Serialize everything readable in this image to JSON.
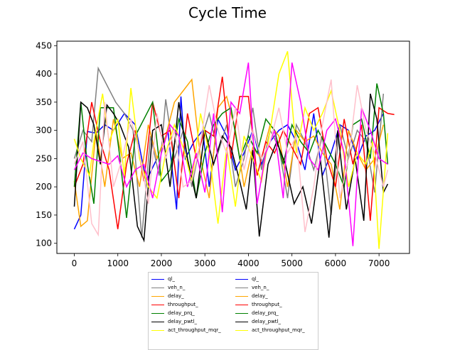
{
  "chart_data": {
    "type": "line",
    "title": "Cycle Time",
    "xlabel": "",
    "ylabel": "",
    "xlim": [
      -400,
      7700
    ],
    "ylim": [
      82,
      458
    ],
    "xticks": [
      0,
      1000,
      2000,
      3000,
      4000,
      5000,
      6000,
      7000
    ],
    "yticks": [
      100,
      150,
      200,
      250,
      300,
      350,
      400,
      450
    ],
    "grid": false,
    "legend_position": "bottom",
    "series": [
      {
        "name": "ql_",
        "color": "#0000ff",
        "x": [
          0,
          150,
          300,
          500,
          700,
          900,
          1150,
          1400,
          1650,
          1900,
          2150,
          2350,
          2450,
          2550,
          2750,
          2950,
          3100,
          3300,
          3500,
          3700,
          3900,
          4100,
          4300,
          4500,
          4700,
          4900,
          5100,
          5300,
          5500,
          5700,
          5900,
          6100,
          6300,
          6500,
          6700,
          6900,
          7100
        ],
        "values": [
          125,
          150,
          298,
          295,
          310,
          300,
          330,
          310,
          210,
          250,
          300,
          160,
          360,
          250,
          280,
          300,
          200,
          320,
          290,
          230,
          260,
          300,
          240,
          280,
          300,
          310,
          280,
          230,
          330,
          220,
          260,
          310,
          300,
          250,
          290,
          300,
          330
        ]
      },
      {
        "name": "veh_n_",
        "color": "#808080",
        "x": [
          0,
          200,
          400,
          550,
          750,
          950,
          1150,
          1350,
          1550,
          1750,
          1950,
          2100,
          2300,
          2500,
          2700,
          2900,
          3100,
          3300,
          3500,
          3700,
          3900,
          4100,
          4300,
          4500,
          4700,
          4900,
          5100,
          5300,
          5500,
          5700,
          5900,
          6100,
          6300,
          6500,
          6700,
          6900,
          7100
        ],
        "values": [
          250,
          300,
          280,
          410,
          380,
          350,
          330,
          300,
          110,
          290,
          220,
          355,
          250,
          300,
          200,
          280,
          330,
          260,
          310,
          200,
          250,
          340,
          230,
          300,
          270,
          180,
          310,
          280,
          230,
          290,
          150,
          310,
          250,
          300,
          280,
          190,
          365
        ]
      },
      {
        "name": "delay_",
        "color": "#ffa500",
        "x": [
          0,
          150,
          300,
          500,
          700,
          900,
          1100,
          1300,
          1500,
          1700,
          1900,
          2100,
          2300,
          2500,
          2700,
          2900,
          3100,
          3300,
          3500,
          3700,
          3900,
          4100,
          4300,
          4500,
          4700,
          4900,
          5100,
          5300,
          5500,
          5700,
          5900,
          6100,
          6300,
          6500,
          6700,
          6900,
          7100
        ],
        "values": [
          210,
          130,
          140,
          300,
          200,
          320,
          250,
          260,
          200,
          310,
          250,
          290,
          350,
          370,
          390,
          250,
          180,
          340,
          360,
          300,
          200,
          270,
          250,
          310,
          290,
          200,
          300,
          280,
          290,
          260,
          240,
          160,
          300,
          260,
          230,
          250,
          310
        ]
      },
      {
        "name": "throughput_",
        "color": "#ff0000",
        "x": [
          0,
          200,
          400,
          600,
          800,
          1000,
          1200,
          1400,
          1600,
          1800,
          2000,
          2200,
          2400,
          2600,
          2800,
          3000,
          3200,
          3400,
          3600,
          3800,
          4000,
          4200,
          4400,
          4600,
          4800,
          5000,
          5200,
          5400,
          5600,
          5800,
          6000,
          6200,
          6400,
          6600,
          6800,
          7000,
          7200,
          7350
        ],
        "values": [
          200,
          240,
          350,
          280,
          230,
          125,
          240,
          300,
          210,
          350,
          290,
          300,
          180,
          330,
          250,
          300,
          290,
          395,
          250,
          360,
          360,
          220,
          280,
          260,
          300,
          270,
          240,
          330,
          340,
          250,
          200,
          320,
          240,
          310,
          140,
          340,
          330,
          328
        ]
      },
      {
        "name": "delay_prq_",
        "color": "#008000",
        "x": [
          0,
          150,
          300,
          450,
          600,
          750,
          900,
          1050,
          1200,
          1400,
          1600,
          1800,
          2000,
          2200,
          2400,
          2600,
          2800,
          3000,
          3200,
          3400,
          3600,
          3800,
          4000,
          4200,
          4400,
          4600,
          4800,
          5000,
          5200,
          5400,
          5600,
          5800,
          6000,
          6200,
          6400,
          6600,
          6800,
          6950,
          7100,
          7200
        ],
        "values": [
          200,
          350,
          240,
          170,
          340,
          340,
          340,
          250,
          145,
          290,
          320,
          350,
          210,
          230,
          320,
          280,
          180,
          260,
          310,
          330,
          340,
          250,
          290,
          260,
          320,
          300,
          240,
          310,
          280,
          260,
          300,
          270,
          240,
          200,
          310,
          320,
          250,
          383,
          330,
          240
        ]
      },
      {
        "name": "delay_pwtl_",
        "color": "#000000",
        "x": [
          0,
          150,
          300,
          450,
          600,
          750,
          900,
          1050,
          1250,
          1450,
          1600,
          1800,
          2000,
          2200,
          2400,
          2600,
          2800,
          3000,
          3200,
          3400,
          3600,
          3800,
          3950,
          4100,
          4250,
          4450,
          4650,
          4850,
          5050,
          5250,
          5450,
          5650,
          5850,
          6050,
          6250,
          6450,
          6650,
          6800,
          6950,
          7100,
          7200
        ],
        "values": [
          165,
          350,
          340,
          310,
          240,
          345,
          330,
          310,
          270,
          130,
          105,
          300,
          310,
          200,
          350,
          250,
          180,
          300,
          240,
          290,
          270,
          210,
          160,
          265,
          112,
          240,
          280,
          240,
          170,
          200,
          135,
          250,
          110,
          300,
          160,
          250,
          140,
          365,
          320,
          190,
          205
        ]
      },
      {
        "name": "act_throughput_mqr_",
        "color": "#ffff00",
        "x": [
          0,
          150,
          350,
          450,
          650,
          800,
          1000,
          1150,
          1300,
          1500,
          1700,
          1900,
          2100,
          2300,
          2500,
          2700,
          2900,
          3100,
          3300,
          3500,
          3700,
          3900,
          4100,
          4300,
          4500,
          4700,
          4900,
          5100,
          5300,
          5500,
          5700,
          5900,
          6100,
          6300,
          6500,
          6700,
          6850,
          7000,
          7200
        ],
        "values": [
          285,
          250,
          220,
          280,
          365,
          280,
          320,
          220,
          375,
          250,
          200,
          180,
          260,
          310,
          270,
          210,
          330,
          260,
          135,
          270,
          165,
          290,
          250,
          210,
          300,
          400,
          440,
          260,
          340,
          300,
          330,
          370,
          300,
          200,
          260,
          240,
          280,
          90,
          295
        ]
      },
      {
        "name": "",
        "color": "#ff00ff",
        "x": [
          0,
          200,
          400,
          600,
          800,
          1000,
          1200,
          1400,
          1600,
          1800,
          2000,
          2200,
          2400,
          2600,
          2800,
          3000,
          3200,
          3400,
          3600,
          3800,
          4000,
          4200,
          4400,
          4600,
          4800,
          5000,
          5200,
          5400,
          5600,
          5800,
          6000,
          6200,
          6400,
          6600,
          6800,
          7000,
          7200
        ],
        "values": [
          230,
          260,
          250,
          245,
          240,
          255,
          200,
          230,
          240,
          180,
          260,
          310,
          290,
          200,
          260,
          190,
          330,
          155,
          350,
          330,
          420,
          170,
          260,
          300,
          180,
          420,
          350,
          250,
          230,
          300,
          320,
          260,
          95,
          340,
          300,
          250,
          240
        ]
      },
      {
        "name": "",
        "color": "#ffc0cb",
        "x": [
          0,
          200,
          400,
          550,
          700,
          900,
          1100,
          1300,
          1500,
          1700,
          1900,
          2100,
          2300,
          2500,
          2700,
          2900,
          3100,
          3300,
          3500,
          3700,
          3900,
          4100,
          4300,
          4500,
          4700,
          4900,
          5100,
          5300,
          5500,
          5700,
          5900,
          6100,
          6300,
          6500,
          6700,
          6900,
          7100,
          7200
        ],
        "values": [
          240,
          280,
          135,
          115,
          350,
          200,
          250,
          320,
          260,
          170,
          330,
          250,
          300,
          200,
          210,
          280,
          380,
          300,
          260,
          340,
          230,
          300,
          250,
          280,
          340,
          260,
          290,
          120,
          200,
          310,
          390,
          180,
          250,
          380,
          300,
          260,
          200,
          230
        ]
      }
    ]
  },
  "legend": {
    "entries": [
      {
        "label": "ql_",
        "color": "#0000ff"
      },
      {
        "label": "ql_",
        "color": "#0000ff"
      },
      {
        "label": "veh_n_",
        "color": "#808080"
      },
      {
        "label": "veh_n_",
        "color": "#808080"
      },
      {
        "label": "delay_",
        "color": "#ffa500"
      },
      {
        "label": "delay_",
        "color": "#ffa500"
      },
      {
        "label": "throughput_",
        "color": "#ff0000"
      },
      {
        "label": "throughput_",
        "color": "#ff0000"
      },
      {
        "label": "delay_prq_",
        "color": "#008000"
      },
      {
        "label": "delay_prq_",
        "color": "#008000"
      },
      {
        "label": "delay_pwtl_",
        "color": "#000000"
      },
      {
        "label": "delay_pwtl_",
        "color": "#000000"
      },
      {
        "label": "act_throughput_mqr_",
        "color": "#ffff00"
      },
      {
        "label": "act_throughput_mqr_",
        "color": "#ffff00"
      }
    ]
  }
}
